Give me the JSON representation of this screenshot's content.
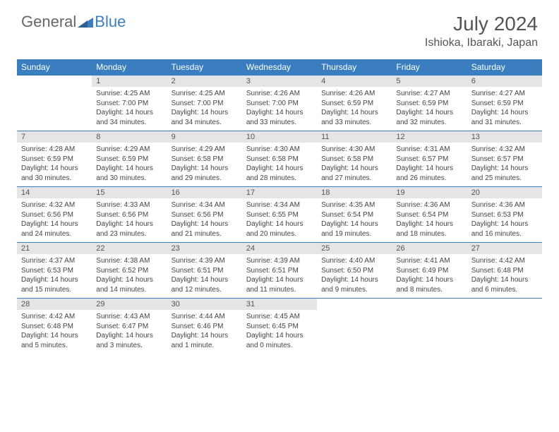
{
  "brand": {
    "part1": "General",
    "part2": "Blue"
  },
  "title": "July 2024",
  "location": "Ishioka, Ibaraki, Japan",
  "colors": {
    "header_bg": "#3a7ebf",
    "header_text": "#ffffff",
    "daynum_bg": "#e5e5e5",
    "text": "#444444",
    "title_text": "#555555"
  },
  "weekdays": [
    "Sunday",
    "Monday",
    "Tuesday",
    "Wednesday",
    "Thursday",
    "Friday",
    "Saturday"
  ],
  "weeks": [
    {
      "nums": [
        "",
        "1",
        "2",
        "3",
        "4",
        "5",
        "6"
      ],
      "cells": [
        {
          "sunrise": "",
          "sunset": "",
          "daylight": ""
        },
        {
          "sunrise": "Sunrise: 4:25 AM",
          "sunset": "Sunset: 7:00 PM",
          "daylight": "Daylight: 14 hours and 34 minutes."
        },
        {
          "sunrise": "Sunrise: 4:25 AM",
          "sunset": "Sunset: 7:00 PM",
          "daylight": "Daylight: 14 hours and 34 minutes."
        },
        {
          "sunrise": "Sunrise: 4:26 AM",
          "sunset": "Sunset: 7:00 PM",
          "daylight": "Daylight: 14 hours and 33 minutes."
        },
        {
          "sunrise": "Sunrise: 4:26 AM",
          "sunset": "Sunset: 6:59 PM",
          "daylight": "Daylight: 14 hours and 33 minutes."
        },
        {
          "sunrise": "Sunrise: 4:27 AM",
          "sunset": "Sunset: 6:59 PM",
          "daylight": "Daylight: 14 hours and 32 minutes."
        },
        {
          "sunrise": "Sunrise: 4:27 AM",
          "sunset": "Sunset: 6:59 PM",
          "daylight": "Daylight: 14 hours and 31 minutes."
        }
      ]
    },
    {
      "nums": [
        "7",
        "8",
        "9",
        "10",
        "11",
        "12",
        "13"
      ],
      "cells": [
        {
          "sunrise": "Sunrise: 4:28 AM",
          "sunset": "Sunset: 6:59 PM",
          "daylight": "Daylight: 14 hours and 30 minutes."
        },
        {
          "sunrise": "Sunrise: 4:29 AM",
          "sunset": "Sunset: 6:59 PM",
          "daylight": "Daylight: 14 hours and 30 minutes."
        },
        {
          "sunrise": "Sunrise: 4:29 AM",
          "sunset": "Sunset: 6:58 PM",
          "daylight": "Daylight: 14 hours and 29 minutes."
        },
        {
          "sunrise": "Sunrise: 4:30 AM",
          "sunset": "Sunset: 6:58 PM",
          "daylight": "Daylight: 14 hours and 28 minutes."
        },
        {
          "sunrise": "Sunrise: 4:30 AM",
          "sunset": "Sunset: 6:58 PM",
          "daylight": "Daylight: 14 hours and 27 minutes."
        },
        {
          "sunrise": "Sunrise: 4:31 AM",
          "sunset": "Sunset: 6:57 PM",
          "daylight": "Daylight: 14 hours and 26 minutes."
        },
        {
          "sunrise": "Sunrise: 4:32 AM",
          "sunset": "Sunset: 6:57 PM",
          "daylight": "Daylight: 14 hours and 25 minutes."
        }
      ]
    },
    {
      "nums": [
        "14",
        "15",
        "16",
        "17",
        "18",
        "19",
        "20"
      ],
      "cells": [
        {
          "sunrise": "Sunrise: 4:32 AM",
          "sunset": "Sunset: 6:56 PM",
          "daylight": "Daylight: 14 hours and 24 minutes."
        },
        {
          "sunrise": "Sunrise: 4:33 AM",
          "sunset": "Sunset: 6:56 PM",
          "daylight": "Daylight: 14 hours and 23 minutes."
        },
        {
          "sunrise": "Sunrise: 4:34 AM",
          "sunset": "Sunset: 6:56 PM",
          "daylight": "Daylight: 14 hours and 21 minutes."
        },
        {
          "sunrise": "Sunrise: 4:34 AM",
          "sunset": "Sunset: 6:55 PM",
          "daylight": "Daylight: 14 hours and 20 minutes."
        },
        {
          "sunrise": "Sunrise: 4:35 AM",
          "sunset": "Sunset: 6:54 PM",
          "daylight": "Daylight: 14 hours and 19 minutes."
        },
        {
          "sunrise": "Sunrise: 4:36 AM",
          "sunset": "Sunset: 6:54 PM",
          "daylight": "Daylight: 14 hours and 18 minutes."
        },
        {
          "sunrise": "Sunrise: 4:36 AM",
          "sunset": "Sunset: 6:53 PM",
          "daylight": "Daylight: 14 hours and 16 minutes."
        }
      ]
    },
    {
      "nums": [
        "21",
        "22",
        "23",
        "24",
        "25",
        "26",
        "27"
      ],
      "cells": [
        {
          "sunrise": "Sunrise: 4:37 AM",
          "sunset": "Sunset: 6:53 PM",
          "daylight": "Daylight: 14 hours and 15 minutes."
        },
        {
          "sunrise": "Sunrise: 4:38 AM",
          "sunset": "Sunset: 6:52 PM",
          "daylight": "Daylight: 14 hours and 14 minutes."
        },
        {
          "sunrise": "Sunrise: 4:39 AM",
          "sunset": "Sunset: 6:51 PM",
          "daylight": "Daylight: 14 hours and 12 minutes."
        },
        {
          "sunrise": "Sunrise: 4:39 AM",
          "sunset": "Sunset: 6:51 PM",
          "daylight": "Daylight: 14 hours and 11 minutes."
        },
        {
          "sunrise": "Sunrise: 4:40 AM",
          "sunset": "Sunset: 6:50 PM",
          "daylight": "Daylight: 14 hours and 9 minutes."
        },
        {
          "sunrise": "Sunrise: 4:41 AM",
          "sunset": "Sunset: 6:49 PM",
          "daylight": "Daylight: 14 hours and 8 minutes."
        },
        {
          "sunrise": "Sunrise: 4:42 AM",
          "sunset": "Sunset: 6:48 PM",
          "daylight": "Daylight: 14 hours and 6 minutes."
        }
      ]
    },
    {
      "nums": [
        "28",
        "29",
        "30",
        "31",
        "",
        "",
        ""
      ],
      "cells": [
        {
          "sunrise": "Sunrise: 4:42 AM",
          "sunset": "Sunset: 6:48 PM",
          "daylight": "Daylight: 14 hours and 5 minutes."
        },
        {
          "sunrise": "Sunrise: 4:43 AM",
          "sunset": "Sunset: 6:47 PM",
          "daylight": "Daylight: 14 hours and 3 minutes."
        },
        {
          "sunrise": "Sunrise: 4:44 AM",
          "sunset": "Sunset: 6:46 PM",
          "daylight": "Daylight: 14 hours and 1 minute."
        },
        {
          "sunrise": "Sunrise: 4:45 AM",
          "sunset": "Sunset: 6:45 PM",
          "daylight": "Daylight: 14 hours and 0 minutes."
        },
        {
          "sunrise": "",
          "sunset": "",
          "daylight": ""
        },
        {
          "sunrise": "",
          "sunset": "",
          "daylight": ""
        },
        {
          "sunrise": "",
          "sunset": "",
          "daylight": ""
        }
      ]
    }
  ]
}
